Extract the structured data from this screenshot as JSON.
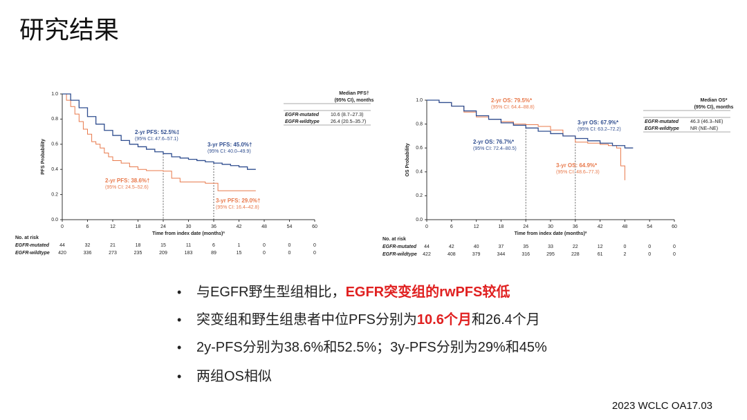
{
  "slide": {
    "title": "研究结果",
    "bullets": [
      [
        "与EGFR野生型组相比，",
        "EGFR突变组的rwPFS较低"
      ],
      [
        "突变组和野生组患者中位PFS分别为",
        "10.6个月",
        "和26.4个月"
      ],
      [
        "2y-PFS分别为38.6%和52.5%；3y-PFS分别为29%和45%"
      ],
      [
        "两组OS相似"
      ]
    ],
    "highlight_color": "#e02020",
    "footer": "2023 WCLC OA17.03"
  },
  "chart_data": [
    {
      "type": "line",
      "step": true,
      "y_label": "PFS Probability",
      "x_label": "Time from index date (months)ª",
      "xlim": [
        0,
        60
      ],
      "xticks": [
        0,
        6,
        12,
        18,
        24,
        30,
        36,
        42,
        48,
        54,
        60
      ],
      "ylim": [
        0,
        1
      ],
      "yticks": [
        {
          "value": 0,
          "label": "0.0"
        },
        0.2,
        0.4,
        0.6,
        0.8,
        {
          "value": 1,
          "label": "1.0"
        }
      ],
      "series": [
        {
          "name": "EGFR-mutated",
          "color": "#e8784a",
          "x": [
            0,
            1,
            2,
            3,
            4,
            5,
            6,
            7,
            8,
            9,
            10,
            11,
            12,
            14,
            16,
            18,
            20,
            22,
            24,
            26,
            28,
            30,
            32,
            34,
            36,
            37,
            40,
            46
          ],
          "values": [
            1,
            0.95,
            0.9,
            0.84,
            0.78,
            0.72,
            0.68,
            0.62,
            0.6,
            0.57,
            0.53,
            0.5,
            0.47,
            0.45,
            0.42,
            0.4,
            0.39,
            0.39,
            0.386,
            0.33,
            0.3,
            0.3,
            0.3,
            0.29,
            0.29,
            0.23,
            0.23,
            0.23
          ],
          "median": "10.6 (8.7–27.3)",
          "at_risk": [
            44,
            32,
            21,
            18,
            15,
            11,
            6,
            1,
            0,
            0,
            0
          ]
        },
        {
          "name": "EGFR-wildtype",
          "color": "#2f4d8f",
          "x": [
            0,
            2,
            4,
            6,
            8,
            10,
            12,
            14,
            16,
            18,
            20,
            22,
            24,
            26,
            28,
            30,
            32,
            34,
            36,
            38,
            40,
            42,
            44,
            46
          ],
          "values": [
            1,
            0.95,
            0.89,
            0.82,
            0.76,
            0.71,
            0.67,
            0.63,
            0.6,
            0.58,
            0.56,
            0.54,
            0.525,
            0.5,
            0.49,
            0.48,
            0.47,
            0.46,
            0.45,
            0.44,
            0.43,
            0.42,
            0.4,
            0.4
          ],
          "median": "26.4 (20.5–35.7)",
          "at_risk": [
            420,
            336,
            273,
            235,
            209,
            183,
            89,
            15,
            0,
            0,
            0
          ]
        }
      ],
      "legend_header": [
        "Median PFS†",
        "(95% CI), months"
      ],
      "at_risk_title": "No. at risk",
      "annotations": [
        {
          "text": "2-yr PFS: 52.5%‡",
          "ci": "(95% CI: 47.6–57.1)",
          "color": "#2f4d8f"
        },
        {
          "text": "3-yr PFS: 45.0%†",
          "ci": "(95% CI: 40.0–49.9)",
          "color": "#2f4d8f"
        },
        {
          "text": "2-yr PFS: 38.6%†",
          "ci": "(95% CI: 24.5–52.6)",
          "color": "#e8784a"
        },
        {
          "text": "3-yr PFS: 29.0%†",
          "ci": "(95% CI: 16.4–42.8)",
          "color": "#e8784a"
        }
      ]
    },
    {
      "type": "line",
      "step": true,
      "y_label": "OS Probability",
      "x_label": "Time from index date (months)ª",
      "xlim": [
        0,
        60
      ],
      "xticks": [
        0,
        6,
        12,
        18,
        24,
        30,
        36,
        42,
        48,
        54,
        60
      ],
      "ylim": [
        0,
        1
      ],
      "yticks": [
        {
          "value": 0,
          "label": "0.0"
        },
        0.2,
        0.4,
        0.6,
        0.8,
        {
          "value": 1,
          "label": "1.0"
        }
      ],
      "series": [
        {
          "name": "EGFR-mutated",
          "color": "#e8784a",
          "x": [
            0,
            3,
            6,
            9,
            12,
            15,
            18,
            21,
            24,
            27,
            30,
            33,
            36,
            39,
            42,
            44,
            46,
            47,
            48
          ],
          "values": [
            1,
            0.98,
            0.95,
            0.9,
            0.86,
            0.84,
            0.82,
            0.8,
            0.795,
            0.78,
            0.75,
            0.7,
            0.649,
            0.64,
            0.63,
            0.62,
            0.6,
            0.45,
            0.33
          ],
          "median": "46.3 (46.3–NE)",
          "at_risk": [
            44,
            42,
            40,
            37,
            35,
            33,
            22,
            12,
            0,
            0,
            0
          ]
        },
        {
          "name": "EGFR-wildtype",
          "color": "#2f4d8f",
          "x": [
            0,
            3,
            6,
            9,
            12,
            15,
            18,
            21,
            24,
            27,
            30,
            33,
            36,
            39,
            42,
            45,
            48,
            50
          ],
          "values": [
            1,
            0.98,
            0.95,
            0.91,
            0.87,
            0.84,
            0.81,
            0.79,
            0.767,
            0.74,
            0.72,
            0.7,
            0.679,
            0.66,
            0.64,
            0.62,
            0.6,
            0.6
          ],
          "median": "NR (NE–NE)",
          "at_risk": [
            422,
            408,
            379,
            344,
            316,
            295,
            228,
            61,
            2,
            0,
            0
          ]
        }
      ],
      "legend_header": [
        "Median OS*",
        "(95% CI), months"
      ],
      "at_risk_title": "No. at risk",
      "annotations": [
        {
          "text": "2-yr OS: 79.5%*",
          "ci": "(95% CI: 64.4–88.8)",
          "color": "#e8784a"
        },
        {
          "text": "2-yr OS: 76.7%*",
          "ci": "(95% CI: 72.4–80.5)",
          "color": "#2f4d8f"
        },
        {
          "text": "3-yr OS: 67.9%*",
          "ci": "(95% CI: 63.2–72.2)",
          "color": "#2f4d8f"
        },
        {
          "text": "3-yr OS: 64.9%*",
          "ci": "(95% CI: 48.6–77.3)",
          "color": "#e8784a"
        }
      ]
    }
  ]
}
